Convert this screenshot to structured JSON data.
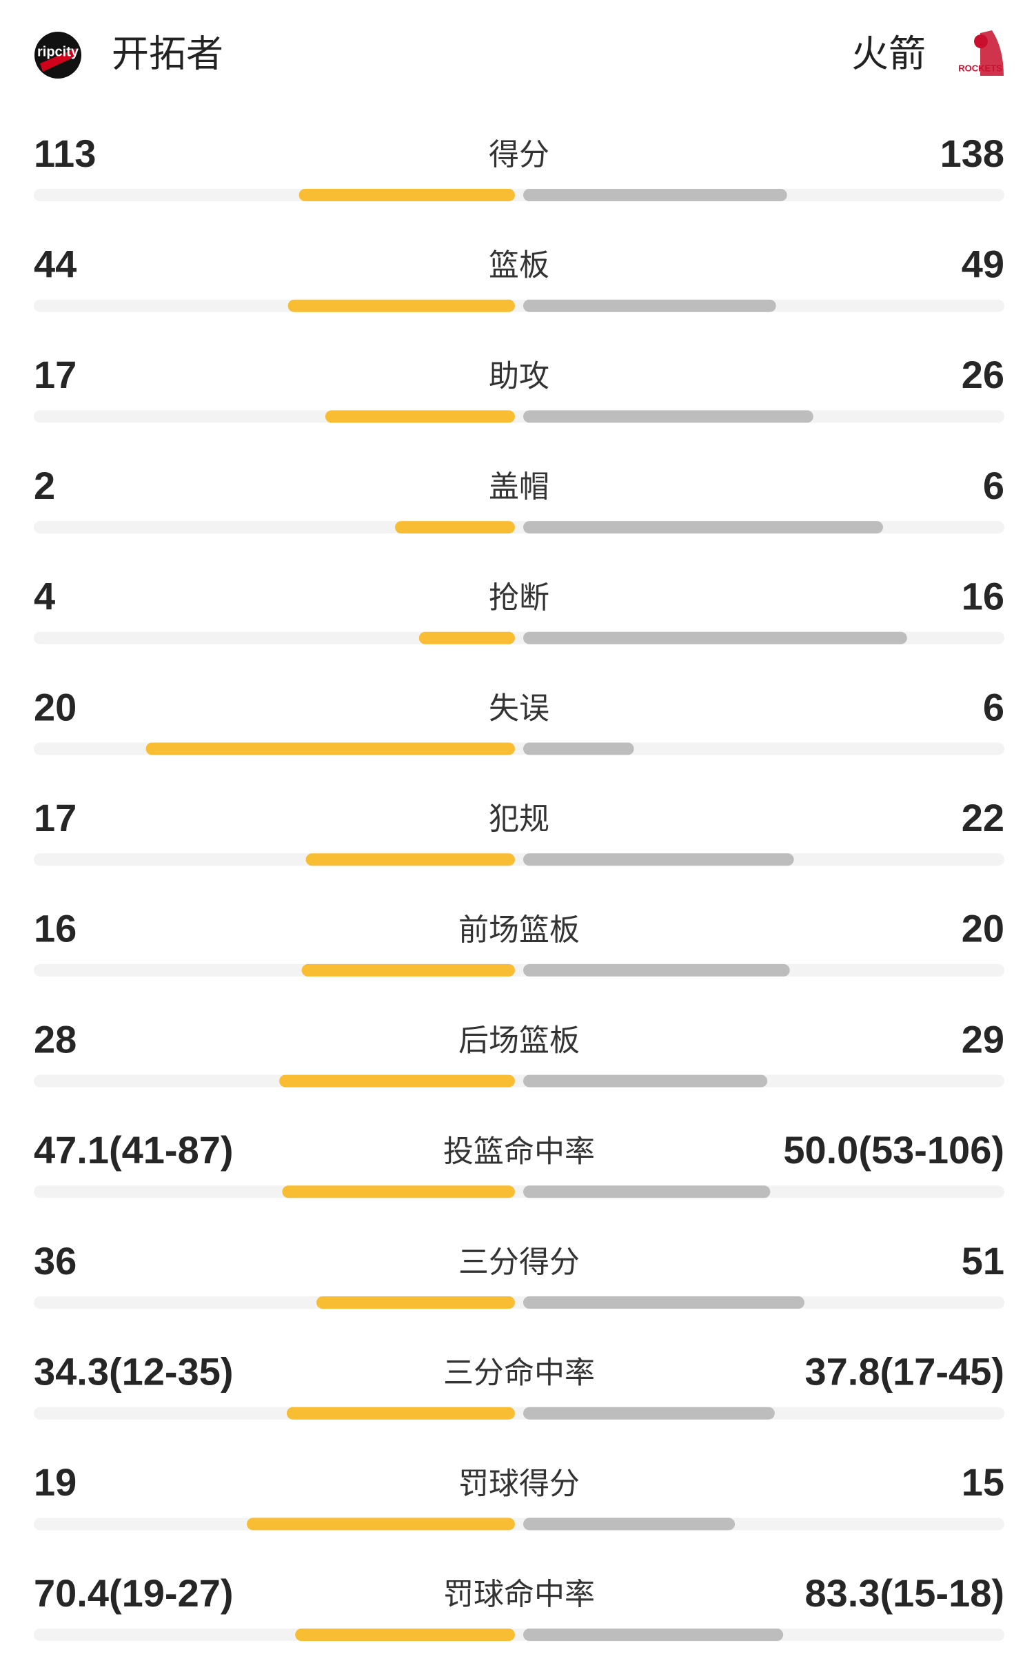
{
  "header": {
    "home": "开拓者",
    "away": "火箭",
    "home_logo": "ripcity",
    "away_logo": "ROCKETS"
  },
  "stats": [
    {
      "label": "得分",
      "left": 113,
      "right": 138
    },
    {
      "label": "篮板",
      "left": 44,
      "right": 49
    },
    {
      "label": "助攻",
      "left": 17,
      "right": 26
    },
    {
      "label": "盖帽",
      "left": 2,
      "right": 6
    },
    {
      "label": "抢断",
      "left": 4,
      "right": 16
    },
    {
      "label": "失误",
      "left": 20,
      "right": 6
    },
    {
      "label": "犯规",
      "left": 17,
      "right": 22
    },
    {
      "label": "前场篮板",
      "left": 16,
      "right": 20
    },
    {
      "label": "后场篮板",
      "left": 28,
      "right": 29
    },
    {
      "label": "投篮命中率",
      "left": 47.1,
      "left_label": "47.1(41-87)",
      "right": 50.0,
      "right_label": "50.0(53-106)"
    },
    {
      "label": "三分得分",
      "left": 36,
      "right": 51
    },
    {
      "label": "三分命中率",
      "left": 34.3,
      "left_label": "34.3(12-35)",
      "right": 37.8,
      "right_label": "37.8(17-45)"
    },
    {
      "label": "罚球得分",
      "left": 19,
      "right": 15
    },
    {
      "label": "罚球命中率",
      "left": 70.4,
      "left_label": "70.4(19-27)",
      "right": 83.3,
      "right_label": "83.3(15-18)"
    }
  ]
}
